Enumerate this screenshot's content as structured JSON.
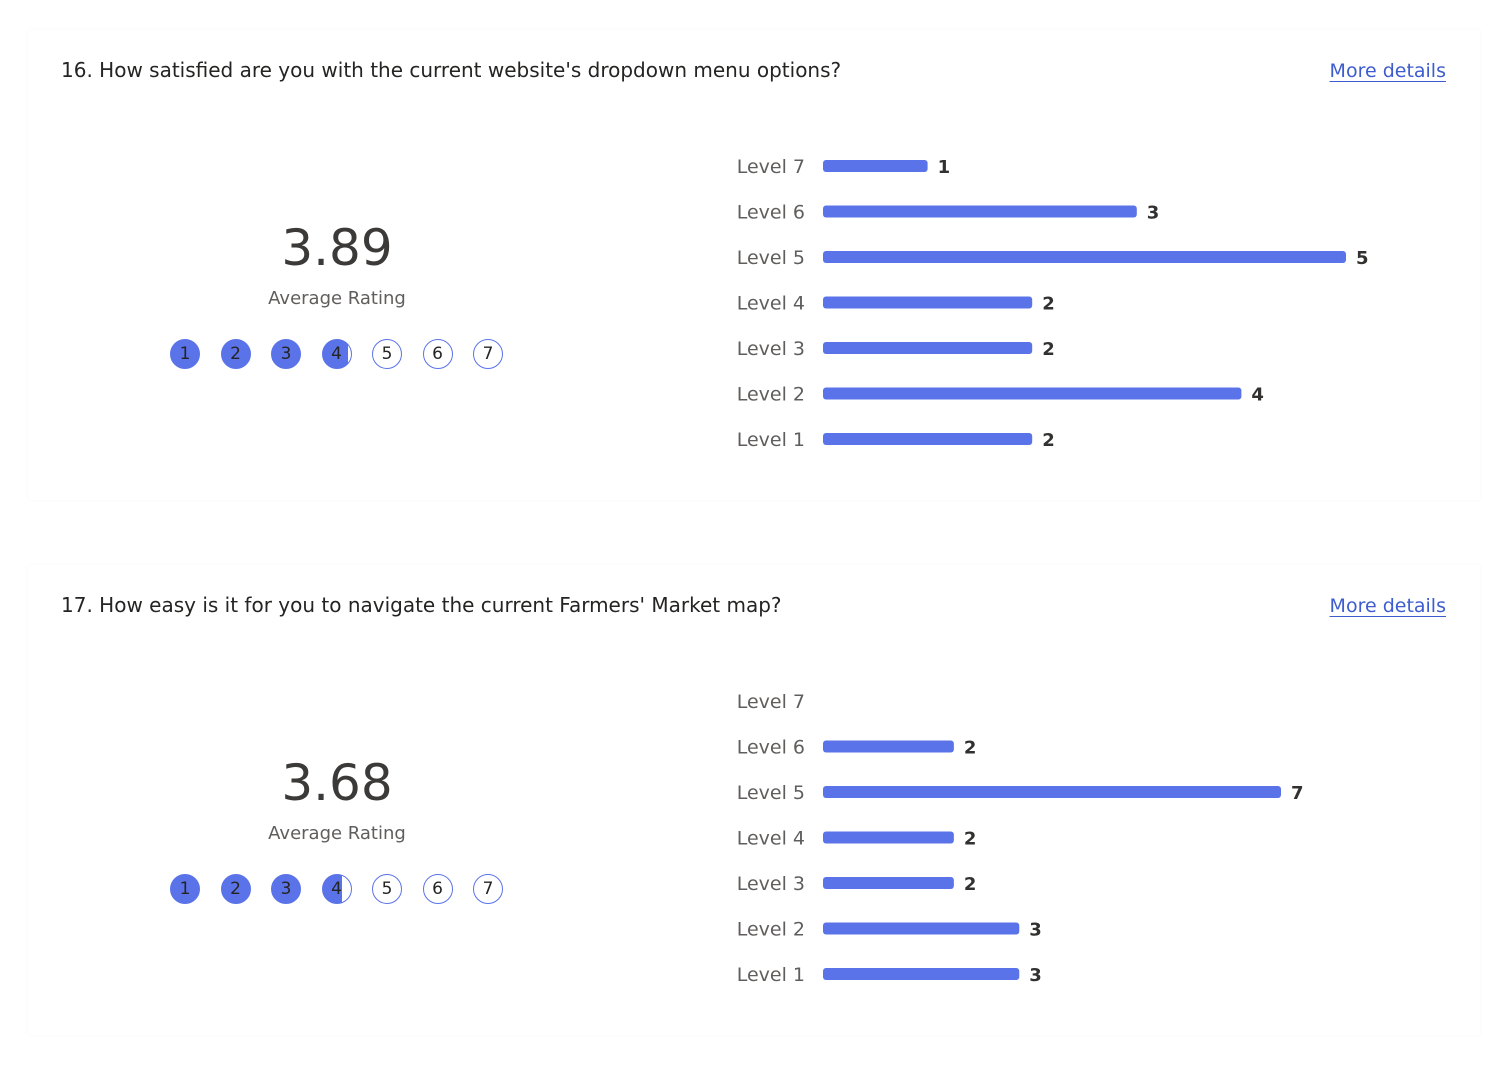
{
  "questions": [
    {
      "title": "16. How satisfied are you with the current website's dropdown menu options?",
      "more_details": "More details",
      "average": "3.89",
      "average_label": "Average Rating",
      "average_value": 3.89,
      "scale": [
        "1",
        "2",
        "3",
        "4",
        "5",
        "6",
        "7"
      ]
    },
    {
      "title": "17. How easy is it for you to navigate the current Farmers' Market map?",
      "more_details": "More details",
      "average": "3.68",
      "average_label": "Average Rating",
      "average_value": 3.68,
      "scale": [
        "1",
        "2",
        "3",
        "4",
        "5",
        "6",
        "7"
      ]
    }
  ],
  "colors": {
    "bar": "#5b73e8",
    "accent_link": "#3d5ccf"
  },
  "chart_data": [
    {
      "type": "bar",
      "orientation": "horizontal",
      "categories": [
        "Level 7",
        "Level 6",
        "Level 5",
        "Level 4",
        "Level 3",
        "Level 2",
        "Level 1"
      ],
      "values": [
        1,
        3,
        5,
        2,
        2,
        4,
        2
      ],
      "value_labels": [
        "1",
        "3",
        "5",
        "2",
        "2",
        "4",
        "2"
      ],
      "xlim": [
        0,
        5
      ],
      "grid": false
    },
    {
      "type": "bar",
      "orientation": "horizontal",
      "categories": [
        "Level 7",
        "Level 6",
        "Level 5",
        "Level 4",
        "Level 3",
        "Level 2",
        "Level 1"
      ],
      "values": [
        0,
        2,
        7,
        2,
        2,
        3,
        3
      ],
      "value_labels": [
        "",
        "2",
        "7",
        "2",
        "2",
        "3",
        "3"
      ],
      "xlim": [
        0,
        7
      ],
      "grid": false
    }
  ]
}
